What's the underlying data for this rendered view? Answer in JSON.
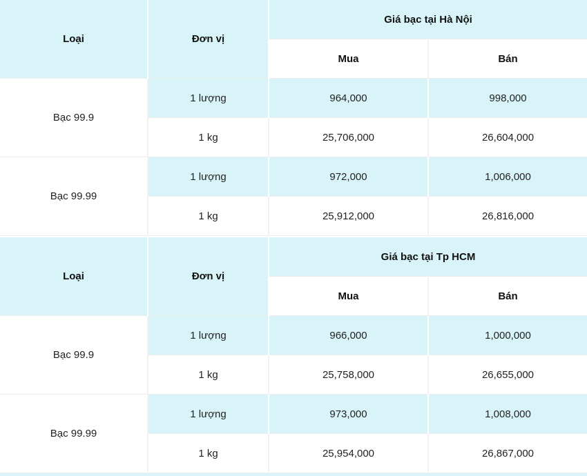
{
  "colors": {
    "band_cyan": "#d9f4f8",
    "row_white": "#ffffff",
    "grid_line": "#ededed",
    "header_text": "#111111",
    "body_text": "#222222"
  },
  "tables": [
    {
      "city_header": "Giá bạc tại Hà Nội",
      "headers": {
        "type": "Loại",
        "unit": "Đơn vị",
        "buy": "Mua",
        "sell": "Bán"
      },
      "groups": [
        {
          "type": "Bạc 99.9",
          "rows": [
            {
              "unit": "1 lượng",
              "buy": "964,000",
              "sell": "998,000"
            },
            {
              "unit": "1 kg",
              "buy": "25,706,000",
              "sell": "26,604,000"
            }
          ]
        },
        {
          "type": "Bạc 99.99",
          "rows": [
            {
              "unit": "1 lượng",
              "buy": "972,000",
              "sell": "1,006,000"
            },
            {
              "unit": "1 kg",
              "buy": "25,912,000",
              "sell": "26,816,000"
            }
          ]
        }
      ]
    },
    {
      "city_header": "Giá bạc tại Tp HCM",
      "headers": {
        "type": "Loại",
        "unit": "Đơn vị",
        "buy": "Mua",
        "sell": "Bán"
      },
      "groups": [
        {
          "type": "Bạc 99.9",
          "rows": [
            {
              "unit": "1 lượng",
              "buy": "966,000",
              "sell": "1,000,000"
            },
            {
              "unit": "1 kg",
              "buy": "25,758,000",
              "sell": "26,655,000"
            }
          ]
        },
        {
          "type": "Bạc 99.99",
          "rows": [
            {
              "unit": "1 lượng",
              "buy": "973,000",
              "sell": "1,008,000"
            },
            {
              "unit": "1 kg",
              "buy": "25,954,000",
              "sell": "26,867,000"
            }
          ]
        }
      ]
    }
  ],
  "chart_data": [
    {
      "type": "table",
      "title": "Giá bạc tại Hà Nội",
      "columns": [
        "Loại",
        "Đơn vị",
        "Mua",
        "Bán"
      ],
      "rows": [
        [
          "Bạc 99.9",
          "1 lượng",
          964000,
          998000
        ],
        [
          "Bạc 99.9",
          "1 kg",
          25706000,
          26604000
        ],
        [
          "Bạc 99.99",
          "1 lượng",
          972000,
          1006000
        ],
        [
          "Bạc 99.99",
          "1 kg",
          25912000,
          26816000
        ]
      ]
    },
    {
      "type": "table",
      "title": "Giá bạc tại Tp HCM",
      "columns": [
        "Loại",
        "Đơn vị",
        "Mua",
        "Bán"
      ],
      "rows": [
        [
          "Bạc 99.9",
          "1 lượng",
          966000,
          1000000
        ],
        [
          "Bạc 99.9",
          "1 kg",
          25758000,
          26655000
        ],
        [
          "Bạc 99.99",
          "1 lượng",
          973000,
          1008000
        ],
        [
          "Bạc 99.99",
          "1 kg",
          25954000,
          26867000
        ]
      ]
    }
  ]
}
